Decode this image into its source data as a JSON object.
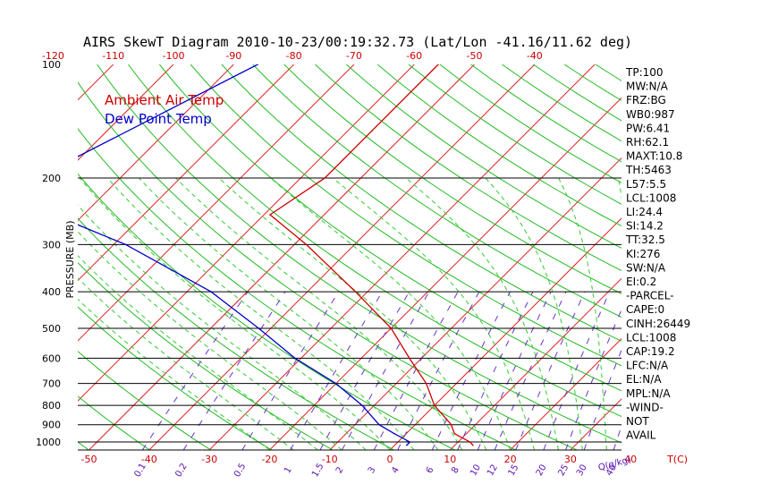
{
  "colors": {
    "temp": "#cc0000",
    "dew": "#0000cc",
    "isotherm": "#dd2020",
    "dry_adiabat": "#22bb22",
    "moist_adiabat": "#33cc33",
    "mixing_ratio": "#6633cc",
    "isobar": "#000000"
  },
  "chart_data": {
    "type": "line",
    "title": "AIRS SkewT Diagram 2010-10-23/00:19:32.73 (Lat/Lon -41.16/11.62 deg)",
    "ylabel": "PRESSURE (MB)",
    "y_scale": "log",
    "ylim": [
      1050,
      100
    ],
    "pressure_ticks": [
      100,
      200,
      300,
      400,
      500,
      600,
      700,
      800,
      900,
      1000
    ],
    "isobars": [
      200,
      300,
      400,
      500,
      600,
      700,
      800,
      900,
      1000
    ],
    "bottom_temp_ticks": [
      -50,
      -40,
      -30,
      -20,
      -10,
      0,
      10,
      20,
      30,
      40
    ],
    "bottom_temp_unit": "T(C)",
    "top_temp_ticks": [
      -120,
      -110,
      -100,
      -90,
      -80,
      -70,
      -60,
      -50,
      -40
    ],
    "mixing_ratio_ticks": [
      "0.1",
      "0.2",
      "0.5",
      "1",
      "1.5",
      "2",
      "3",
      "4",
      "6",
      "8",
      "10",
      "12",
      "15",
      "20",
      "25",
      "30",
      "40"
    ],
    "mixing_ratio_unit": "Q(g/kg)",
    "legend": [
      {
        "label": "Ambient Air Temp",
        "color": "#cc0000"
      },
      {
        "label": "Dew Point Temp",
        "color": "#0000cc"
      }
    ],
    "series": [
      {
        "name": "Ambient Air Temp",
        "pressure": [
          100,
          150,
          200,
          250,
          300,
          400,
          500,
          600,
          700,
          800,
          900,
          950,
          1000,
          1020
        ],
        "values": [
          -56,
          -56,
          -56,
          -59,
          -48,
          -32,
          -20,
          -12,
          -5,
          0,
          6,
          8,
          12,
          13
        ]
      },
      {
        "name": "Dew Point Temp",
        "pressure": [
          100,
          200,
          250,
          300,
          400,
          500,
          600,
          700,
          800,
          900,
          950,
          1000,
          1020
        ],
        "values": [
          -86,
          -104,
          -95,
          -78,
          -56,
          -42,
          -31,
          -20,
          -12,
          -6,
          -2,
          2,
          2
        ]
      }
    ]
  },
  "indices": [
    "TP:100",
    "MW:N/A",
    "FRZ:BG",
    "WB0:987",
    "PW:6.41",
    "RH:62.1",
    "MAXT:10.8",
    "TH:5463",
    "L57:5.5",
    "LCL:1008",
    "LI:24.4",
    "SI:14.2",
    "TT:32.5",
    "KI:276",
    "SW:N/A",
    "EI:0.2",
    "-PARCEL-",
    "CAPE:0",
    "CINH:26449",
    "LCL:1008",
    "CAP:19.2",
    "LFC:N/A",
    "EL:N/A",
    "MPL:N/A",
    "-WIND-",
    "NOT",
    "AVAIL"
  ]
}
